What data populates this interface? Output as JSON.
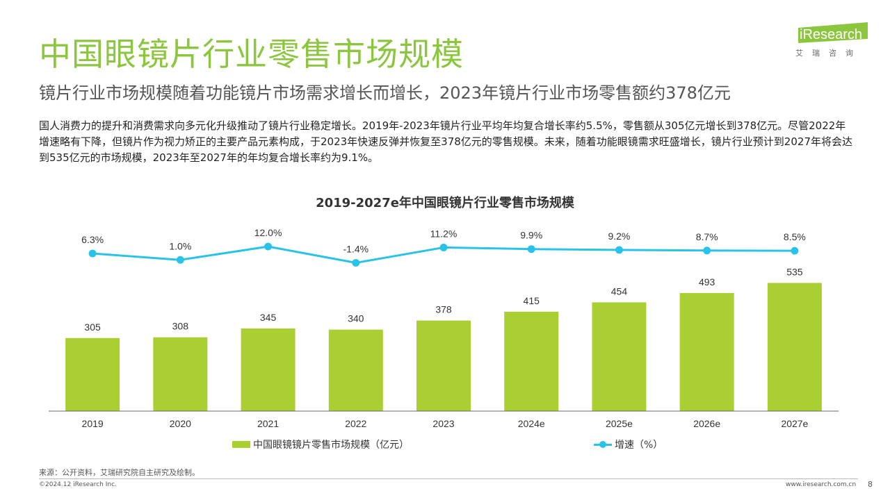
{
  "header": {
    "title": "中国眼镜片行业零售市场规模",
    "subtitle": "镜片行业市场规模随着功能镜片市场需求增长而增长，2023年镜片行业市场零售额约378亿元"
  },
  "logo": {
    "brand": "iResearch",
    "cn": "艾瑞咨询"
  },
  "body_text": "国人消费力的提升和消费需求向多元化升级推动了镜片行业稳定增长。2019年-2023年镜片行业平均年均复合增长率约5.5%，零售额从305亿元增长到378亿元。尽管2022年增速略有下降，但镜片作为视力矫正的主要产品元素构成，于2023年快速反弹并恢复至378亿元的零售规模。未来，随着功能眼镜需求旺盛增长，镜片行业预计到2027年将会达到535亿元的市场规模，2023年至2027年的年均复合增长率约为9.1%。",
  "chart_data": {
    "type": "bar",
    "title": "2019-2027e年中国眼镜片行业零售市场规模",
    "categories": [
      "2019",
      "2020",
      "2021",
      "2022",
      "2023",
      "2024e",
      "2025e",
      "2026e",
      "2027e"
    ],
    "series": [
      {
        "name": "中国眼镜镜片零售市场规模（亿元）",
        "type": "bar",
        "values": [
          305,
          308,
          345,
          340,
          378,
          415,
          454,
          493,
          535
        ],
        "labels": [
          "305",
          "308",
          "345",
          "340",
          "378",
          "415",
          "454",
          "493",
          "535"
        ],
        "color": "#a9cf32"
      },
      {
        "name": "增速（%）",
        "type": "line",
        "values": [
          6.3,
          1.0,
          12.0,
          -1.4,
          11.2,
          9.9,
          9.2,
          8.7,
          8.5
        ],
        "labels": [
          "6.3%",
          "1.0%",
          "12.0%",
          "-1.4%",
          "11.2%",
          "9.9%",
          "9.2%",
          "8.7%",
          "8.5%"
        ],
        "color": "#29c3ea"
      }
    ],
    "legend_position": "bottom"
  },
  "legend": {
    "bar_label": "中国眼镜镜片零售市场规模（亿元）",
    "line_label": "增速（%）"
  },
  "footer": {
    "source": "来源：公开资料，艾瑞研究院自主研究及绘制。",
    "copyright": "©2024.12 iResearch Inc.",
    "website": "www.iresearch.com.cn",
    "page": "8"
  }
}
